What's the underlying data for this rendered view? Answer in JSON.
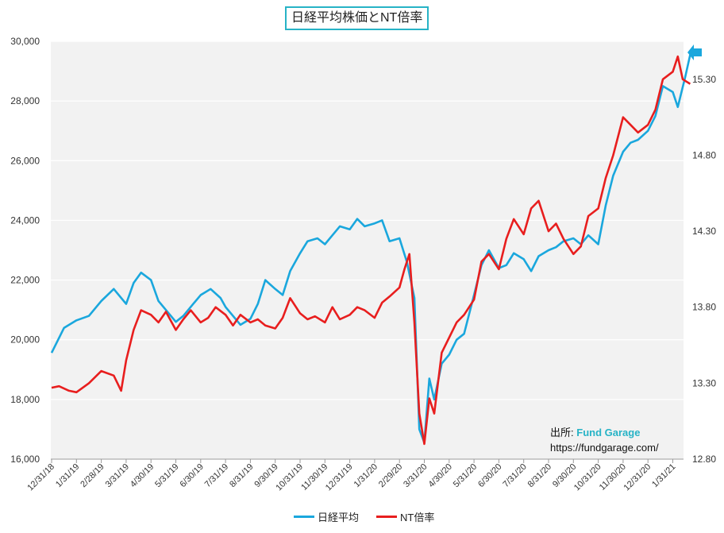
{
  "chart_data": {
    "type": "line",
    "title": "日経平均株価とNT倍率",
    "x_tick_labels": [
      "12/31/18",
      "1/31/19",
      "2/28/19",
      "3/31/19",
      "4/30/19",
      "5/31/19",
      "6/30/19",
      "7/31/19",
      "8/31/19",
      "9/30/19",
      "10/31/19",
      "11/30/19",
      "12/31/19",
      "1/31/20",
      "2/29/20",
      "3/31/20",
      "4/30/20",
      "5/31/20",
      "6/30/20",
      "7/31/20",
      "8/31/20",
      "9/30/20",
      "10/31/20",
      "11/30/20",
      "12/31/20",
      "1/31/21"
    ],
    "y_left": {
      "min": 16000,
      "max": 30000,
      "ticks": [
        "16,000",
        "18,000",
        "20,000",
        "22,000",
        "24,000",
        "26,000",
        "28,000",
        "30,000"
      ]
    },
    "y_right": {
      "min": 12.8,
      "max": 15.55,
      "ticks": [
        "12.80",
        "13.30",
        "13.80",
        "14.30",
        "14.80",
        "15.30"
      ]
    },
    "series": [
      {
        "name": "日経平均",
        "axis": "left",
        "color": "#1aa7dd",
        "points": [
          [
            0,
            19560
          ],
          [
            0.5,
            20400
          ],
          [
            1,
            20650
          ],
          [
            1.5,
            20800
          ],
          [
            2,
            21300
          ],
          [
            2.5,
            21700
          ],
          [
            3,
            21200
          ],
          [
            3.3,
            21900
          ],
          [
            3.6,
            22250
          ],
          [
            4,
            22000
          ],
          [
            4.3,
            21300
          ],
          [
            4.7,
            20900
          ],
          [
            5,
            20600
          ],
          [
            5.3,
            20800
          ],
          [
            5.7,
            21200
          ],
          [
            6,
            21500
          ],
          [
            6.4,
            21700
          ],
          [
            6.8,
            21400
          ],
          [
            7,
            21100
          ],
          [
            7.3,
            20800
          ],
          [
            7.6,
            20500
          ],
          [
            8,
            20700
          ],
          [
            8.3,
            21200
          ],
          [
            8.6,
            22000
          ],
          [
            9,
            21700
          ],
          [
            9.3,
            21500
          ],
          [
            9.6,
            22300
          ],
          [
            10,
            22900
          ],
          [
            10.3,
            23300
          ],
          [
            10.7,
            23400
          ],
          [
            11,
            23200
          ],
          [
            11.3,
            23500
          ],
          [
            11.6,
            23800
          ],
          [
            12,
            23700
          ],
          [
            12.3,
            24050
          ],
          [
            12.6,
            23800
          ],
          [
            13,
            23900
          ],
          [
            13.3,
            24000
          ],
          [
            13.6,
            23300
          ],
          [
            14,
            23400
          ],
          [
            14.3,
            22600
          ],
          [
            14.6,
            21400
          ],
          [
            14.8,
            17000
          ],
          [
            15,
            16550
          ],
          [
            15.2,
            18700
          ],
          [
            15.4,
            18000
          ],
          [
            15.7,
            19200
          ],
          [
            16,
            19500
          ],
          [
            16.3,
            20000
          ],
          [
            16.6,
            20200
          ],
          [
            17,
            21500
          ],
          [
            17.3,
            22500
          ],
          [
            17.6,
            23000
          ],
          [
            18,
            22400
          ],
          [
            18.3,
            22500
          ],
          [
            18.6,
            22900
          ],
          [
            19,
            22700
          ],
          [
            19.3,
            22300
          ],
          [
            19.6,
            22800
          ],
          [
            20,
            23000
          ],
          [
            20.3,
            23100
          ],
          [
            20.6,
            23300
          ],
          [
            21,
            23400
          ],
          [
            21.3,
            23200
          ],
          [
            21.6,
            23500
          ],
          [
            22,
            23200
          ],
          [
            22.3,
            24500
          ],
          [
            22.6,
            25500
          ],
          [
            23,
            26300
          ],
          [
            23.3,
            26600
          ],
          [
            23.6,
            26700
          ],
          [
            24,
            27000
          ],
          [
            24.3,
            27500
          ],
          [
            24.6,
            28500
          ],
          [
            25,
            28300
          ],
          [
            25.2,
            27800
          ],
          [
            25.5,
            28800
          ],
          [
            25.7,
            29550
          ]
        ]
      },
      {
        "name": "NT倍率",
        "axis": "right",
        "color": "#e81e1e",
        "points": [
          [
            0,
            13.27
          ],
          [
            0.3,
            13.28
          ],
          [
            0.7,
            13.25
          ],
          [
            1,
            13.24
          ],
          [
            1.5,
            13.3
          ],
          [
            2,
            13.38
          ],
          [
            2.5,
            13.35
          ],
          [
            2.8,
            13.25
          ],
          [
            3,
            13.45
          ],
          [
            3.3,
            13.65
          ],
          [
            3.6,
            13.78
          ],
          [
            4,
            13.75
          ],
          [
            4.3,
            13.7
          ],
          [
            4.6,
            13.77
          ],
          [
            5,
            13.65
          ],
          [
            5.3,
            13.72
          ],
          [
            5.6,
            13.78
          ],
          [
            6,
            13.7
          ],
          [
            6.3,
            13.73
          ],
          [
            6.6,
            13.8
          ],
          [
            7,
            13.75
          ],
          [
            7.3,
            13.68
          ],
          [
            7.6,
            13.75
          ],
          [
            8,
            13.7
          ],
          [
            8.3,
            13.72
          ],
          [
            8.6,
            13.68
          ],
          [
            9,
            13.66
          ],
          [
            9.3,
            13.73
          ],
          [
            9.6,
            13.86
          ],
          [
            10,
            13.76
          ],
          [
            10.3,
            13.72
          ],
          [
            10.6,
            13.74
          ],
          [
            11,
            13.7
          ],
          [
            11.3,
            13.8
          ],
          [
            11.6,
            13.72
          ],
          [
            12,
            13.75
          ],
          [
            12.3,
            13.8
          ],
          [
            12.6,
            13.78
          ],
          [
            13,
            13.73
          ],
          [
            13.3,
            13.83
          ],
          [
            13.6,
            13.87
          ],
          [
            14,
            13.93
          ],
          [
            14.2,
            14.05
          ],
          [
            14.4,
            14.15
          ],
          [
            14.6,
            13.7
          ],
          [
            14.8,
            13.1
          ],
          [
            15,
            12.9
          ],
          [
            15.2,
            13.2
          ],
          [
            15.4,
            13.1
          ],
          [
            15.7,
            13.5
          ],
          [
            16,
            13.6
          ],
          [
            16.3,
            13.7
          ],
          [
            16.6,
            13.75
          ],
          [
            17,
            13.85
          ],
          [
            17.3,
            14.1
          ],
          [
            17.6,
            14.15
          ],
          [
            18,
            14.05
          ],
          [
            18.3,
            14.25
          ],
          [
            18.6,
            14.38
          ],
          [
            19,
            14.28
          ],
          [
            19.3,
            14.45
          ],
          [
            19.6,
            14.5
          ],
          [
            20,
            14.3
          ],
          [
            20.3,
            14.35
          ],
          [
            20.6,
            14.25
          ],
          [
            21,
            14.15
          ],
          [
            21.3,
            14.2
          ],
          [
            21.6,
            14.4
          ],
          [
            22,
            14.45
          ],
          [
            22.3,
            14.65
          ],
          [
            22.6,
            14.8
          ],
          [
            23,
            15.05
          ],
          [
            23.3,
            15.0
          ],
          [
            23.6,
            14.95
          ],
          [
            24,
            15.0
          ],
          [
            24.3,
            15.1
          ],
          [
            24.6,
            15.3
          ],
          [
            25,
            15.35
          ],
          [
            25.2,
            15.45
          ],
          [
            25.4,
            15.3
          ],
          [
            25.7,
            15.27
          ]
        ]
      }
    ],
    "current_marker": "arrow-left-icon"
  },
  "source": {
    "label": "出所:",
    "name": "Fund Garage",
    "url": "https://fundgarage.com/"
  },
  "legend": [
    {
      "name": "日経平均",
      "color": "#1aa7dd"
    },
    {
      "name": "NT倍率",
      "color": "#e81e1e"
    }
  ]
}
